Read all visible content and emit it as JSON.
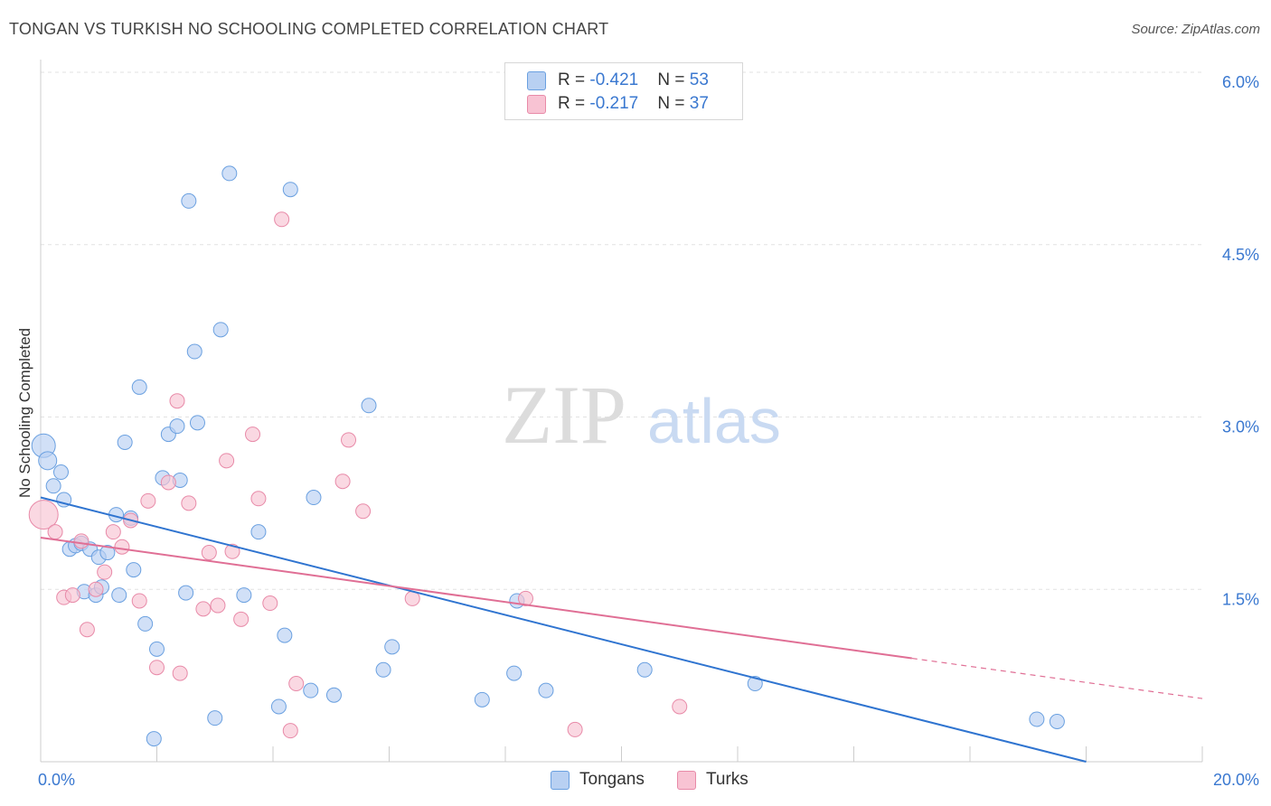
{
  "title": "TONGAN VS TURKISH NO SCHOOLING COMPLETED CORRELATION CHART",
  "source": "Source: ZipAtlas.com",
  "watermark": {
    "zip": "ZIP",
    "atlas": "atlas"
  },
  "legend": {
    "rows": [
      {
        "r_label": "R = ",
        "r_value": "-0.421",
        "n_label": "N = ",
        "n_value": "53",
        "color": "#b8d0f2"
      },
      {
        "r_label": "R = ",
        "r_value": "-0.217",
        "n_label": "N = ",
        "n_value": "37",
        "color": "#f8c3d3"
      }
    ]
  },
  "bottom_legend": [
    {
      "label": "Tongans",
      "color": "#b8d0f2"
    },
    {
      "label": "Turks",
      "color": "#f8c3d3"
    }
  ],
  "chart_data": {
    "type": "scatter",
    "title": "TONGAN VS TURKISH NO SCHOOLING COMPLETED CORRELATION CHART",
    "xlabel": "",
    "ylabel": "No Schooling Completed",
    "xlim": [
      0,
      20
    ],
    "ylim": [
      0,
      6
    ],
    "x_tick_labels": [
      "0.0%",
      "20.0%"
    ],
    "y_ticks": [
      1.5,
      3.0,
      4.5,
      6.0
    ],
    "y_tick_labels": [
      "1.5%",
      "3.0%",
      "4.5%",
      "6.0%"
    ],
    "grid": true,
    "series": [
      {
        "name": "Tongans",
        "color": "#6aa0e0",
        "fill": "#b8d0f2",
        "trend": {
          "x": [
            0,
            18
          ],
          "y": [
            2.3,
            0.0
          ],
          "color": "#2f74d0"
        },
        "points": [
          {
            "x": 0.05,
            "y": 2.75,
            "s": 13
          },
          {
            "x": 0.12,
            "y": 2.62,
            "s": 10
          },
          {
            "x": 0.22,
            "y": 2.4
          },
          {
            "x": 0.35,
            "y": 2.52
          },
          {
            "x": 0.4,
            "y": 2.28
          },
          {
            "x": 0.5,
            "y": 1.85
          },
          {
            "x": 0.6,
            "y": 1.88
          },
          {
            "x": 0.7,
            "y": 1.9
          },
          {
            "x": 0.75,
            "y": 1.48
          },
          {
            "x": 0.85,
            "y": 1.85
          },
          {
            "x": 0.95,
            "y": 1.45
          },
          {
            "x": 1.0,
            "y": 1.78
          },
          {
            "x": 1.05,
            "y": 1.52
          },
          {
            "x": 1.15,
            "y": 1.82
          },
          {
            "x": 1.3,
            "y": 2.15
          },
          {
            "x": 1.35,
            "y": 1.45
          },
          {
            "x": 1.45,
            "y": 2.78
          },
          {
            "x": 1.55,
            "y": 2.12
          },
          {
            "x": 1.6,
            "y": 1.67
          },
          {
            "x": 1.7,
            "y": 3.26
          },
          {
            "x": 1.8,
            "y": 1.2
          },
          {
            "x": 1.95,
            "y": 0.2
          },
          {
            "x": 2.0,
            "y": 0.98
          },
          {
            "x": 2.1,
            "y": 2.47
          },
          {
            "x": 2.2,
            "y": 2.85
          },
          {
            "x": 2.35,
            "y": 2.92
          },
          {
            "x": 2.4,
            "y": 2.45
          },
          {
            "x": 2.5,
            "y": 1.47
          },
          {
            "x": 2.55,
            "y": 4.88
          },
          {
            "x": 2.65,
            "y": 3.57
          },
          {
            "x": 2.7,
            "y": 2.95
          },
          {
            "x": 3.0,
            "y": 0.38
          },
          {
            "x": 3.1,
            "y": 3.76
          },
          {
            "x": 3.25,
            "y": 5.12
          },
          {
            "x": 3.5,
            "y": 1.45
          },
          {
            "x": 3.75,
            "y": 2.0
          },
          {
            "x": 4.1,
            "y": 0.48
          },
          {
            "x": 4.2,
            "y": 1.1
          },
          {
            "x": 4.3,
            "y": 4.98
          },
          {
            "x": 4.65,
            "y": 0.62
          },
          {
            "x": 4.7,
            "y": 2.3
          },
          {
            "x": 5.05,
            "y": 0.58
          },
          {
            "x": 5.65,
            "y": 3.1
          },
          {
            "x": 5.9,
            "y": 0.8
          },
          {
            "x": 6.05,
            "y": 1.0
          },
          {
            "x": 7.6,
            "y": 0.54
          },
          {
            "x": 8.15,
            "y": 0.77
          },
          {
            "x": 8.2,
            "y": 1.4
          },
          {
            "x": 8.7,
            "y": 0.62
          },
          {
            "x": 10.4,
            "y": 0.8
          },
          {
            "x": 12.3,
            "y": 0.68
          },
          {
            "x": 17.15,
            "y": 0.37
          },
          {
            "x": 17.5,
            "y": 0.35
          }
        ]
      },
      {
        "name": "Turks",
        "color": "#e88aa8",
        "fill": "#f8c3d3",
        "trend": {
          "x": [
            0,
            15.0
          ],
          "y": [
            1.95,
            0.9
          ],
          "color": "#e06f95",
          "dashed_to": [
            20,
            0.55
          ]
        },
        "points": [
          {
            "x": 0.05,
            "y": 2.15,
            "s": 16
          },
          {
            "x": 0.25,
            "y": 2.0
          },
          {
            "x": 0.4,
            "y": 1.43
          },
          {
            "x": 0.55,
            "y": 1.45
          },
          {
            "x": 0.7,
            "y": 1.92
          },
          {
            "x": 0.8,
            "y": 1.15
          },
          {
            "x": 0.95,
            "y": 1.5
          },
          {
            "x": 1.1,
            "y": 1.65
          },
          {
            "x": 1.25,
            "y": 2.0
          },
          {
            "x": 1.4,
            "y": 1.87
          },
          {
            "x": 1.55,
            "y": 2.1
          },
          {
            "x": 1.7,
            "y": 1.4
          },
          {
            "x": 1.85,
            "y": 2.27
          },
          {
            "x": 2.0,
            "y": 0.82
          },
          {
            "x": 2.2,
            "y": 2.43
          },
          {
            "x": 2.35,
            "y": 3.14
          },
          {
            "x": 2.4,
            "y": 0.77
          },
          {
            "x": 2.55,
            "y": 2.25
          },
          {
            "x": 2.8,
            "y": 1.33
          },
          {
            "x": 2.9,
            "y": 1.82
          },
          {
            "x": 3.05,
            "y": 1.36
          },
          {
            "x": 3.2,
            "y": 2.62
          },
          {
            "x": 3.3,
            "y": 1.83
          },
          {
            "x": 3.45,
            "y": 1.24
          },
          {
            "x": 3.65,
            "y": 2.85
          },
          {
            "x": 3.75,
            "y": 2.29
          },
          {
            "x": 3.95,
            "y": 1.38
          },
          {
            "x": 4.15,
            "y": 4.72
          },
          {
            "x": 4.3,
            "y": 0.27
          },
          {
            "x": 4.4,
            "y": 0.68
          },
          {
            "x": 5.2,
            "y": 2.44
          },
          {
            "x": 5.3,
            "y": 2.8
          },
          {
            "x": 5.55,
            "y": 2.18
          },
          {
            "x": 6.4,
            "y": 1.42
          },
          {
            "x": 8.35,
            "y": 1.42
          },
          {
            "x": 9.2,
            "y": 0.28
          },
          {
            "x": 11.0,
            "y": 0.48
          }
        ]
      }
    ]
  }
}
